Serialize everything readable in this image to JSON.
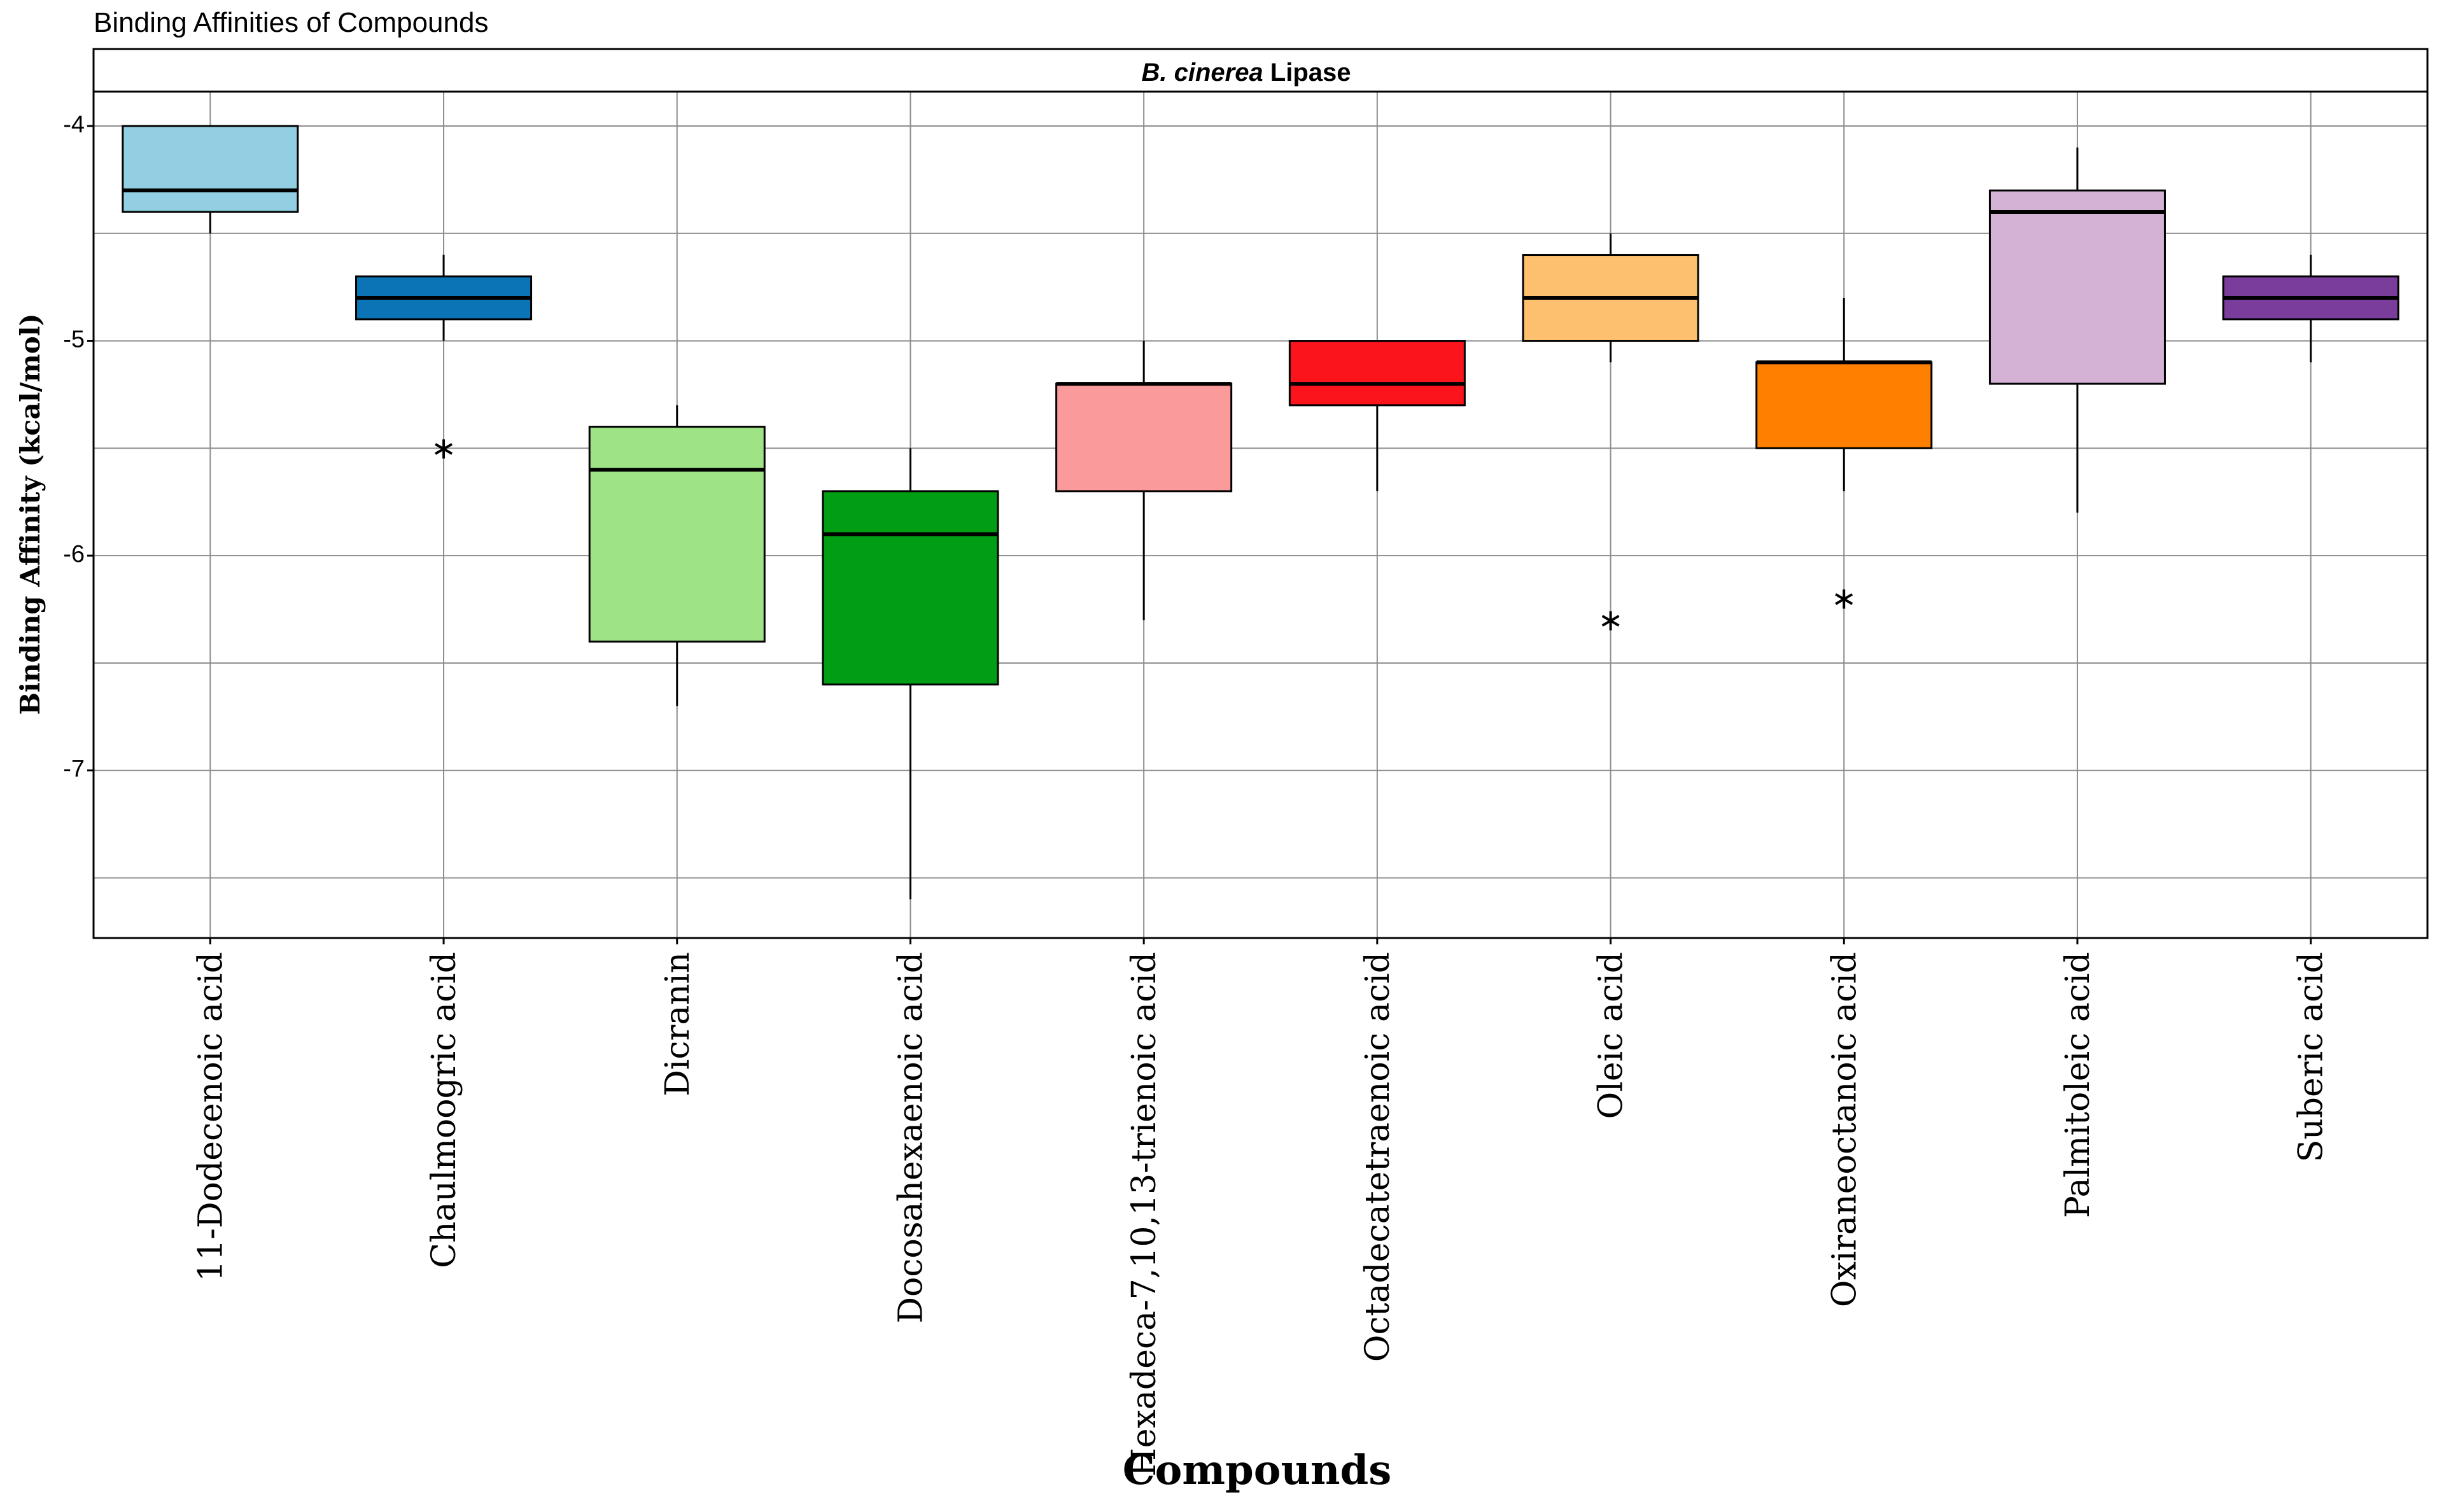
{
  "chart_data": {
    "type": "box",
    "title": "Binding Affinities of Compounds",
    "strip": {
      "italic": "B. cinerea",
      "rest": " Lipase"
    },
    "xlabel": "Compounds",
    "ylabel": "Binding Affinity (kcal/mol)",
    "ylim": [
      -7.78,
      -3.84
    ],
    "yticks": [
      -4,
      -5,
      -6,
      -7
    ],
    "ytick_labels": [
      "-4",
      "-5",
      "-6",
      "-7"
    ],
    "categories": [
      "11-Dodecenoic acid",
      "Chaulmoogric acid",
      "Dicranin",
      "Docosahexaenoic acid",
      "Hexadeca-7,10,13-trienoic acid",
      "Octadecatetraenoic acid",
      "Oleic acid",
      "Oxiraneoctanoic acid",
      "Palmitoleic acid",
      "Suberic acid"
    ],
    "boxes": [
      {
        "q1": -4.4,
        "median": -4.3,
        "q3": -4.0,
        "whisker_low": -4.5,
        "whisker_high": -4.0,
        "outliers": []
      },
      {
        "q1": -4.9,
        "median": -4.8,
        "q3": -4.7,
        "whisker_low": -5.0,
        "whisker_high": -4.6,
        "outliers": [
          -5.5
        ]
      },
      {
        "q1": -6.4,
        "median": -5.6,
        "q3": -5.4,
        "whisker_low": -6.7,
        "whisker_high": -5.3,
        "outliers": []
      },
      {
        "q1": -6.6,
        "median": -5.9,
        "q3": -5.7,
        "whisker_low": -7.6,
        "whisker_high": -5.5,
        "outliers": []
      },
      {
        "q1": -5.7,
        "median": -5.2,
        "q3": -5.2,
        "whisker_low": -6.3,
        "whisker_high": -5.0,
        "outliers": []
      },
      {
        "q1": -5.3,
        "median": -5.2,
        "q3": -5.0,
        "whisker_low": -5.7,
        "whisker_high": -5.0,
        "outliers": []
      },
      {
        "q1": -5.0,
        "median": -4.8,
        "q3": -4.6,
        "whisker_low": -5.1,
        "whisker_high": -4.5,
        "outliers": [
          -6.3
        ]
      },
      {
        "q1": -5.5,
        "median": -5.1,
        "q3": -5.1,
        "whisker_low": -5.7,
        "whisker_high": -4.8,
        "outliers": [
          -6.2
        ]
      },
      {
        "q1": -5.2,
        "median": -4.4,
        "q3": -4.3,
        "whisker_low": -5.8,
        "whisker_high": -4.1,
        "outliers": []
      },
      {
        "q1": -4.9,
        "median": -4.8,
        "q3": -4.7,
        "whisker_low": -5.1,
        "whisker_high": -4.6,
        "outliers": []
      }
    ],
    "colors": [
      "#92cfe3",
      "#0b74b6",
      "#9ee385",
      "#009e14",
      "#fb9a9b",
      "#fb141c",
      "#fdc06f",
      "#ff7f00",
      "#d4b2d6",
      "#7a3d9c"
    ],
    "grid": true,
    "legend": "none"
  }
}
